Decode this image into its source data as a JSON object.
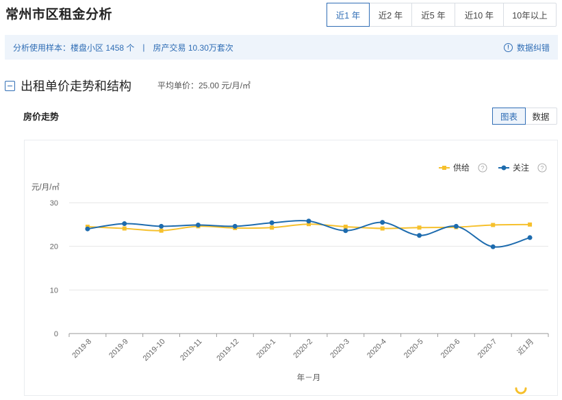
{
  "page": {
    "title": "常州市区租金分析"
  },
  "range_tabs": [
    {
      "label": "近1 年",
      "active": true
    },
    {
      "label": "近2 年",
      "active": false
    },
    {
      "label": "近5 年",
      "active": false
    },
    {
      "label": "近10 年",
      "active": false
    },
    {
      "label": "10年以上",
      "active": false
    }
  ],
  "sample": {
    "prefix": "分析使用样本：",
    "estates": "楼盘小区 1458 个",
    "separator": "|",
    "transactions": "房产交易 10.30万套次",
    "correction_label": "数据纠错",
    "correction_icon": "info-icon"
  },
  "section": {
    "title": "出租单价走势和结构",
    "avg_price": "平均单价：25.00 元/月/㎡",
    "collapse_icon": "minus-square-icon"
  },
  "chart_header": {
    "subtitle": "房价走势",
    "view_buttons": [
      {
        "label": "图表",
        "active": true
      },
      {
        "label": "数据",
        "active": false
      }
    ]
  },
  "colors": {
    "accent": "#2f6db5",
    "supply": "#f6c02c",
    "attention": "#1d6bae",
    "grid": "#e6e6e6"
  },
  "chart_data": {
    "type": "line",
    "title": "",
    "ylabel": "元/月/㎡",
    "xlabel": "年－月",
    "ylim": [
      0,
      30
    ],
    "yticks": [
      0,
      10,
      20,
      30
    ],
    "grid": true,
    "legend_position": "top-right",
    "categories": [
      "2019-8",
      "2019-9",
      "2019-10",
      "2019-11",
      "2019-12",
      "2020-1",
      "2020-2",
      "2020-3",
      "2020-4",
      "2020-5",
      "2020-6",
      "2020-7",
      "近1月"
    ],
    "series": [
      {
        "name": "供给",
        "marker": "square",
        "color": "#f6c02c",
        "values": [
          24.5,
          24.1,
          23.6,
          24.6,
          24.2,
          24.3,
          25.1,
          24.5,
          24.1,
          24.3,
          24.4,
          24.9,
          25.0
        ]
      },
      {
        "name": "关注",
        "marker": "circle",
        "color": "#1d6bae",
        "values": [
          24.0,
          25.2,
          24.6,
          24.9,
          24.6,
          25.4,
          25.8,
          23.6,
          25.5,
          22.5,
          24.6,
          19.9,
          22.0
        ]
      }
    ]
  }
}
